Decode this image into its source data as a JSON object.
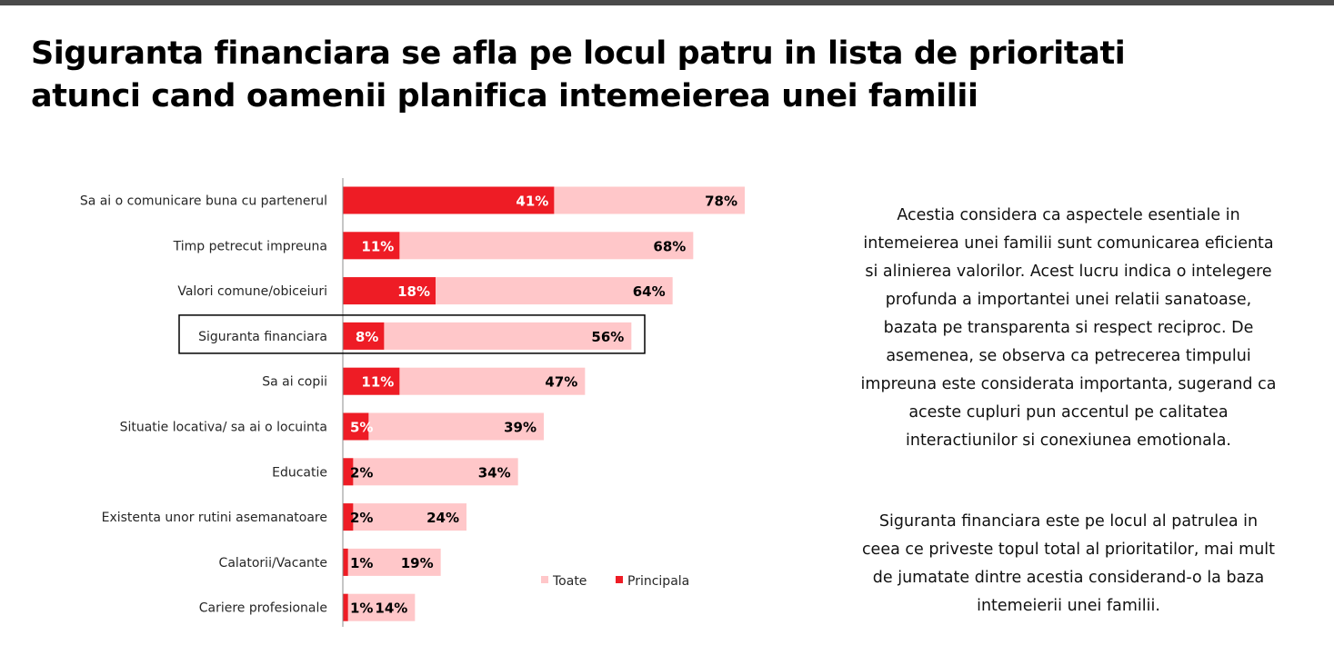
{
  "title": "Siguranta financiara se afla pe locul patru in lista de prioritati atunci cand oamenii planifica intemeierea unei familii",
  "paragraphs": [
    "Acestia considera ca aspectele esentiale in intemeierea unei familii sunt comunicarea eficienta si alinierea valorilor. Acest lucru indica o intelegere profunda a importantei unei relatii sanatoase, bazata pe transparenta si respect reciproc. De asemenea, se observa ca petrecerea timpului impreuna este considerata importanta, sugerand ca aceste cupluri pun accentul pe calitatea interactiunilor si conexiunea emotionala.",
    "Siguranta financiara este pe locul al patrulea in ceea ce priveste topul total al prioritatilor, mai mult de jumatate dintre acestia considerand-o la baza intemeierii unei familii."
  ],
  "colors": {
    "toate": "#ffc7c9",
    "principala": "#ee1c25",
    "highlight_border": "#000000",
    "label_on_red": "#ffffff",
    "label_on_pink": "#000000"
  },
  "chart_data": {
    "type": "bar",
    "orientation": "horizontal",
    "overlapping": true,
    "categories": [
      "Sa ai o comunicare buna cu partenerul",
      "Timp petrecut impreuna",
      "Valori comune/obiceiuri",
      "Siguranta financiara",
      "Sa ai copii",
      "Situatie locativa/ sa ai o locuinta",
      "Educatie",
      "Existenta unor rutini asemanatoare",
      "Calatorii/Vacante",
      "Cariere profesionale"
    ],
    "series": [
      {
        "name": "Toate",
        "values": [
          78,
          68,
          64,
          56,
          47,
          39,
          34,
          24,
          19,
          14
        ],
        "labels": [
          "78%",
          "68%",
          "64%",
          "56%",
          "47%",
          "39%",
          "34%",
          "24%",
          "19%",
          "14%"
        ]
      },
      {
        "name": "Principala",
        "values": [
          41,
          11,
          18,
          8,
          11,
          5,
          2,
          2,
          1,
          1
        ],
        "labels": [
          "41%",
          "11%",
          "18%",
          "8%",
          "11%",
          "5%",
          "2%",
          "2%",
          "1%",
          "1%"
        ]
      }
    ],
    "highlighted_category": "Siguranta financiara",
    "xlim": [
      0,
      100
    ],
    "legend": {
      "position": "bottom-right",
      "entries": [
        "Toate",
        "Principala"
      ]
    },
    "grid": false
  }
}
